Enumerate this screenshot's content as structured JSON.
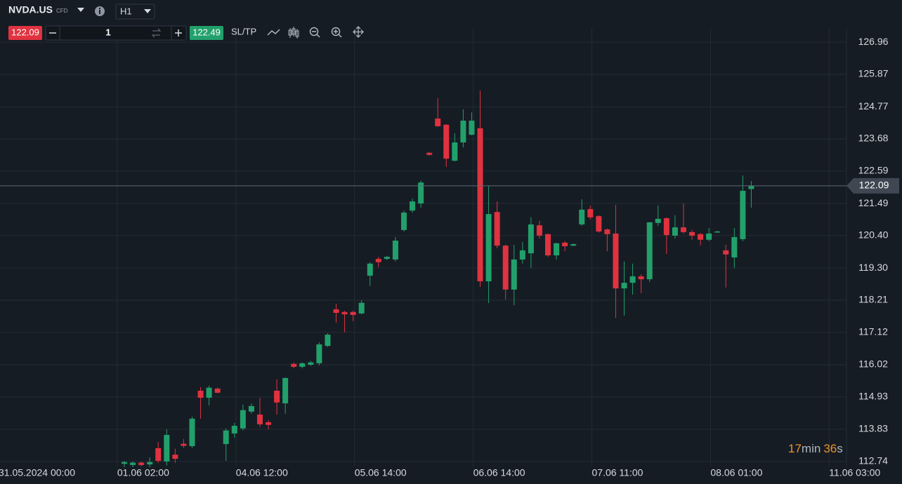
{
  "header": {
    "symbol": "NVDA.US",
    "instrument_type": "CFD",
    "timeframe": "H1",
    "sell_price": "122.09",
    "quantity": "1",
    "buy_price": "122.49",
    "sl_tp": "SL/TP"
  },
  "chart_data": {
    "type": "candlestick",
    "open": [
      112.66,
      112.62,
      112.7,
      112.64,
      113.19,
      112.74,
      112.97,
      113.34,
      113.26,
      115.14,
      114.9,
      115.21,
      113.33,
      113.69,
      113.86,
      114.43,
      114.33,
      114.07,
      115.14,
      114.71,
      116.05,
      115.95,
      116.02,
      116.07,
      116.66,
      117.9,
      117.81,
      117.81,
      117.76,
      119.04,
      119.61,
      119.61,
      119.59,
      120.59,
      121.25,
      121.49,
      123.21,
      124.37,
      124.16,
      122.94,
      123.56,
      123.82,
      124.04,
      118.85,
      121.2,
      120.06,
      118.57,
      119.59,
      119.8,
      120.75,
      120.45,
      119.73,
      120.16,
      120.06,
      120.78,
      121.3,
      121.06,
      120.61,
      120.47,
      118.61,
      118.8,
      119.02,
      118.92,
      120.83,
      120.99,
      120.4,
      120.68,
      120.52,
      120.45,
      120.26,
      120.52,
      119.9,
      119.66,
      120.28,
      121.98
    ],
    "high": [
      112.76,
      112.74,
      112.74,
      112.88,
      113.4,
      113.83,
      113.17,
      113.5,
      114.26,
      115.26,
      115.31,
      115.25,
      113.86,
      114.05,
      114.67,
      114.71,
      114.9,
      114.14,
      115.52,
      115.59,
      116.1,
      116.1,
      116.15,
      116.78,
      117.09,
      118.09,
      117.85,
      117.85,
      118.21,
      119.5,
      119.68,
      119.71,
      120.35,
      121.25,
      121.66,
      122.27,
      123.23,
      125.06,
      124.18,
      123.87,
      124.68,
      124.58,
      125.32,
      122.08,
      121.56,
      120.09,
      120.09,
      120.18,
      121.02,
      120.9,
      120.47,
      120.16,
      120.21,
      120.13,
      121.63,
      121.42,
      121.09,
      120.64,
      121.44,
      119.52,
      119.45,
      119.09,
      120.87,
      121.42,
      121.02,
      121.09,
      121.49,
      120.59,
      120.49,
      120.66,
      120.57,
      120.09,
      120.66,
      122.44,
      122.25
    ],
    "low": [
      112.55,
      112.55,
      112.58,
      112.55,
      112.69,
      112.6,
      112.69,
      113.2,
      113.2,
      114.19,
      114.64,
      115.05,
      112.76,
      113.55,
      113.79,
      114.36,
      113.91,
      113.83,
      114.33,
      114.36,
      115.9,
      115.9,
      115.98,
      116.0,
      116.62,
      117.45,
      117.12,
      117.5,
      117.73,
      118.69,
      119.33,
      119.57,
      119.52,
      120.54,
      121.18,
      121.35,
      123.11,
      124.09,
      122.73,
      122.92,
      123.39,
      123.8,
      118.66,
      118.11,
      119.97,
      118.23,
      118.04,
      119.45,
      119.3,
      120.3,
      119.68,
      119.59,
      119.87,
      120.04,
      120.73,
      120.95,
      120.5,
      119.87,
      117.61,
      117.69,
      118.4,
      118.45,
      118.83,
      120.73,
      119.78,
      120.3,
      120.47,
      120.26,
      120.07,
      120.21,
      120.5,
      118.64,
      119.3,
      120.21,
      121.35
    ],
    "close": [
      112.72,
      112.7,
      112.62,
      112.72,
      112.76,
      113.64,
      112.83,
      113.27,
      114.19,
      114.9,
      115.24,
      115.07,
      113.79,
      113.95,
      114.48,
      114.62,
      114.0,
      113.98,
      114.74,
      115.57,
      115.95,
      116.07,
      116.1,
      116.71,
      117.04,
      117.78,
      117.73,
      117.71,
      118.12,
      119.45,
      119.5,
      119.68,
      120.23,
      121.18,
      121.56,
      122.2,
      123.14,
      124.11,
      123.01,
      123.56,
      124.3,
      124.3,
      118.85,
      121.13,
      120.06,
      118.57,
      119.59,
      119.9,
      120.78,
      120.4,
      119.73,
      120.14,
      120.04,
      120.11,
      121.28,
      121.02,
      120.54,
      120.45,
      118.61,
      118.8,
      119.02,
      118.92,
      120.85,
      120.97,
      120.42,
      120.68,
      120.52,
      120.4,
      120.26,
      120.47,
      120.54,
      119.76,
      120.35,
      121.92,
      122.09
    ],
    "up_color": "#22a06b",
    "down_color": "#e0323f",
    "ylim": [
      112.57,
      127.44
    ],
    "yticks": [
      126.96,
      125.87,
      124.77,
      123.68,
      122.59,
      121.49,
      {
        "value": 120.4,
        "label": "120.40"
      },
      {
        "value": 119.3,
        "label": "119.30"
      },
      118.21,
      117.12,
      116.02,
      114.93,
      113.83,
      112.74
    ],
    "time_labels": [
      "31.05.2024 00:00",
      "01.06 02:00",
      "04.06 12:00",
      "05.06 14:00",
      "06.06 14:00",
      "07.06 11:00",
      "08.06 01:00",
      "11.06 03:00"
    ],
    "current_price": 122.09,
    "grid": true
  },
  "timer": {
    "minutes": "17",
    "min_unit": "min",
    "seconds": "36",
    "sec_unit": "s"
  }
}
